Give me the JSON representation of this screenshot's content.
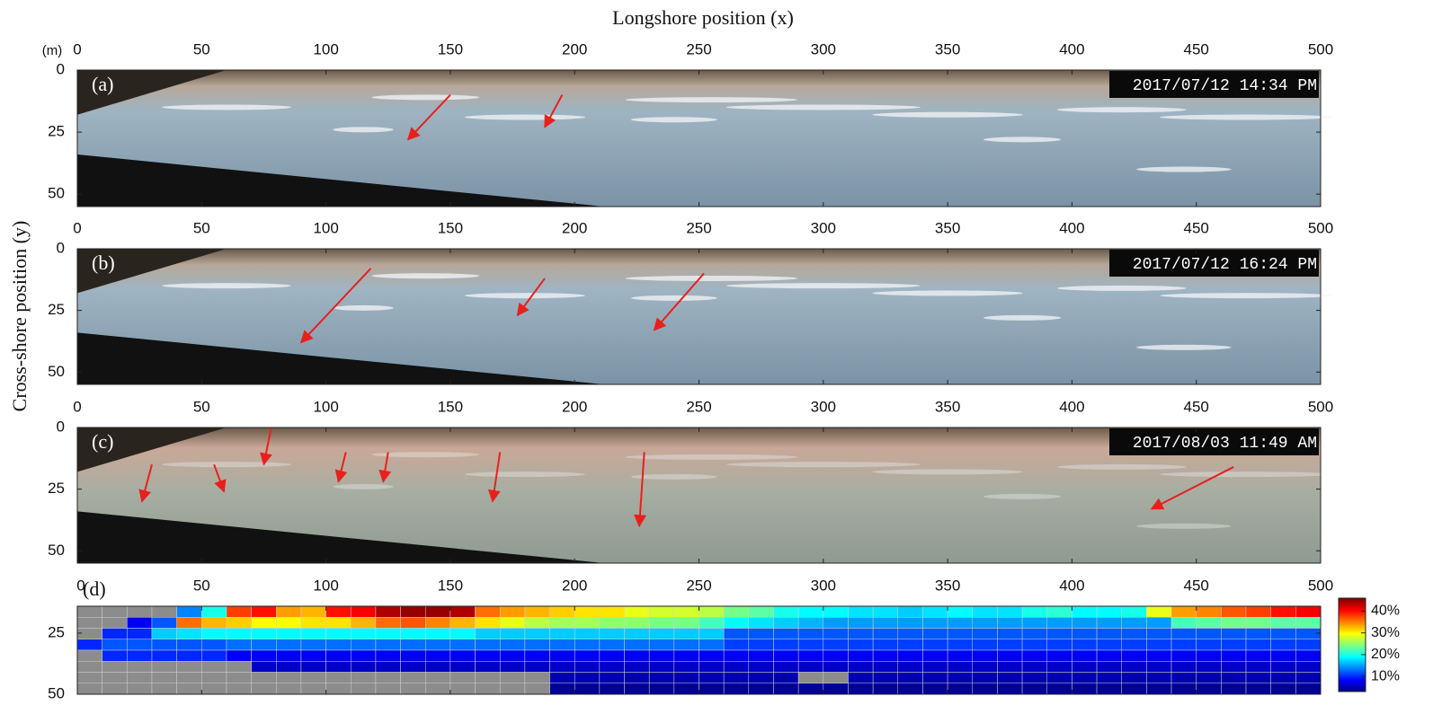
{
  "figure": {
    "xlabel": "Longshore position (x)",
    "ylabel": "Cross-shore position (y)",
    "unit": "(m)"
  },
  "chart_data": [
    {
      "type": "image",
      "label": "(a)",
      "timestamp": "2017/07/12 14:34 PM",
      "xlim": [
        0,
        500
      ],
      "ylim": [
        0,
        55
      ],
      "xticks": [
        0,
        50,
        100,
        150,
        200,
        250,
        300,
        350,
        400,
        450,
        500
      ],
      "yticks": [
        0,
        25,
        50
      ]
    },
    {
      "type": "image",
      "label": "(b)",
      "timestamp": "2017/07/12 16:24 PM",
      "xlim": [
        0,
        500
      ],
      "ylim": [
        0,
        55
      ],
      "xticks": [
        0,
        50,
        100,
        150,
        200,
        250,
        300,
        350,
        400,
        450,
        500
      ],
      "yticks": [
        0,
        25,
        50
      ]
    },
    {
      "type": "image",
      "label": "(c)",
      "timestamp": "2017/08/03 11:49 AM",
      "xlim": [
        0,
        500
      ],
      "ylim": [
        0,
        55
      ],
      "xticks": [
        0,
        50,
        100,
        150,
        200,
        250,
        300,
        350,
        400,
        450,
        500
      ],
      "yticks": [
        0,
        25,
        50
      ]
    },
    {
      "type": "heatmap",
      "label": "(d)",
      "xlim": [
        0,
        500
      ],
      "ylim": [
        14,
        50
      ],
      "xticks": [
        0,
        50,
        100,
        150,
        200,
        250,
        300,
        350,
        400,
        450,
        500
      ],
      "yticks": [
        25,
        50
      ],
      "x_edges": [
        0,
        10,
        20,
        30,
        40,
        50,
        60,
        70,
        80,
        90,
        100,
        110,
        120,
        130,
        140,
        150,
        160,
        170,
        180,
        190,
        200,
        210,
        220,
        230,
        240,
        250,
        260,
        270,
        280,
        290,
        300,
        310,
        320,
        330,
        340,
        350,
        360,
        370,
        380,
        390,
        400,
        410,
        420,
        430,
        440,
        450,
        460,
        470,
        480,
        490,
        500
      ],
      "y_edges": [
        14,
        18.5,
        23,
        27.5,
        32,
        36.5,
        41,
        45.5,
        50
      ],
      "clim": [
        3,
        46
      ],
      "colormap": "jet",
      "nan_color": "#8c8c8c",
      "cticks": [
        {
          "value": 10,
          "label": "10%"
        },
        {
          "value": 20,
          "label": "20%"
        },
        {
          "value": 30,
          "label": "30%"
        },
        {
          "value": 40,
          "label": "40%"
        }
      ],
      "values": [
        [
          null,
          null,
          null,
          null,
          14,
          20,
          38,
          40,
          34,
          33,
          40,
          41,
          44,
          45,
          45,
          44,
          36,
          34,
          33,
          32,
          31,
          31,
          29,
          28,
          28,
          27,
          24,
          23,
          20,
          19,
          19,
          18,
          18,
          17,
          18,
          19,
          18,
          18,
          20,
          21,
          19,
          19,
          20,
          29,
          34,
          35,
          37,
          38,
          40,
          41
        ],
        [
          null,
          null,
          8,
          12,
          36,
          33,
          32,
          30,
          30,
          31,
          31,
          33,
          36,
          37,
          35,
          33,
          31,
          29,
          27,
          26,
          26,
          25,
          25,
          24,
          24,
          22,
          19,
          18,
          17,
          16,
          15,
          15,
          15,
          15,
          15,
          15,
          15,
          15,
          15,
          15,
          15,
          15,
          15,
          15,
          22,
          23,
          24,
          24,
          23,
          23
        ],
        [
          null,
          10,
          10,
          17,
          18,
          19,
          19,
          19,
          19,
          19,
          19,
          19,
          19,
          19,
          19,
          19,
          17,
          17,
          17,
          17,
          17,
          17,
          17,
          17,
          17,
          17,
          12,
          12,
          12,
          12,
          12,
          12,
          12,
          12,
          12,
          12,
          12,
          12,
          12,
          12,
          12,
          12,
          12,
          12,
          12,
          12,
          12,
          12,
          12,
          12
        ],
        [
          10,
          12,
          12,
          12,
          12,
          12,
          13,
          13,
          13,
          13,
          13,
          13,
          13,
          13,
          13,
          13,
          13,
          13,
          13,
          13,
          13,
          13,
          13,
          13,
          13,
          13,
          11,
          11,
          11,
          11,
          11,
          11,
          11,
          11,
          11,
          11,
          11,
          11,
          11,
          11,
          11,
          11,
          11,
          11,
          11,
          11,
          11,
          11,
          11,
          11
        ],
        [
          null,
          10,
          10,
          10,
          10,
          10,
          8,
          8,
          8,
          8,
          8,
          8,
          8,
          8,
          8,
          8,
          8,
          8,
          8,
          8,
          8,
          8,
          8,
          8,
          8,
          8,
          8,
          8,
          8,
          8,
          8,
          8,
          8,
          8,
          8,
          8,
          8,
          8,
          8,
          8,
          8,
          8,
          8,
          8,
          8,
          8,
          8,
          8,
          8,
          8
        ],
        [
          null,
          null,
          null,
          null,
          null,
          null,
          null,
          6,
          6,
          6,
          6,
          6,
          6,
          6,
          6,
          6,
          6,
          6,
          6,
          6,
          6,
          6,
          6,
          6,
          6,
          6,
          6,
          6,
          6,
          6,
          6,
          6,
          6,
          6,
          6,
          6,
          6,
          6,
          6,
          6,
          6,
          6,
          6,
          6,
          6,
          6,
          6,
          6,
          6,
          6
        ],
        [
          null,
          null,
          null,
          null,
          null,
          null,
          null,
          null,
          null,
          null,
          null,
          null,
          null,
          null,
          null,
          null,
          null,
          null,
          null,
          5,
          5,
          5,
          5,
          5,
          5,
          5,
          5,
          5,
          5,
          null,
          null,
          5,
          5,
          5,
          5,
          5,
          5,
          5,
          5,
          5,
          5,
          5,
          5,
          5,
          5,
          5,
          5,
          5,
          5,
          5
        ],
        [
          null,
          null,
          null,
          null,
          null,
          null,
          null,
          null,
          null,
          null,
          null,
          null,
          null,
          null,
          null,
          null,
          null,
          null,
          null,
          4,
          4,
          4,
          4,
          4,
          4,
          4,
          4,
          4,
          4,
          4,
          4,
          4,
          4,
          4,
          4,
          4,
          4,
          4,
          4,
          4,
          4,
          4,
          4,
          4,
          4,
          4,
          4,
          4,
          4,
          4
        ]
      ]
    }
  ]
}
